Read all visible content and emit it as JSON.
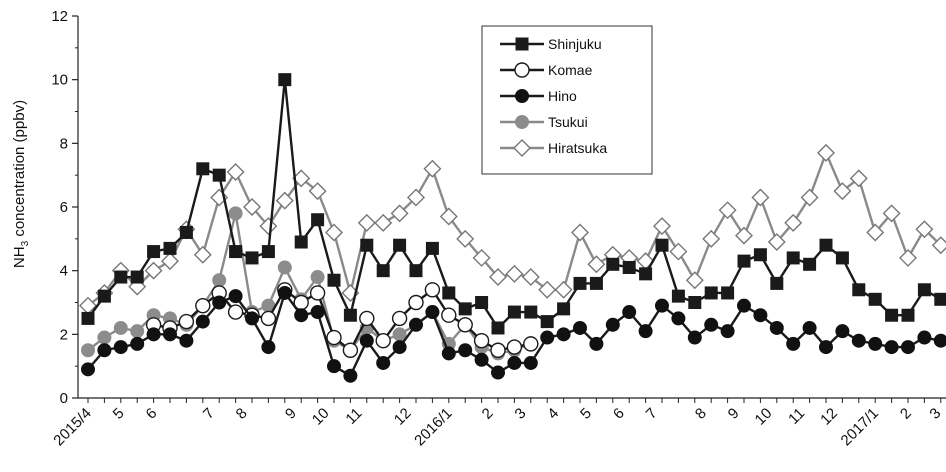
{
  "chart_data": {
    "type": "line",
    "ylabel_main": "NH",
    "ylabel_sub": "3",
    "ylabel_rest": " concentration (ppbv)",
    "ylim": [
      0,
      12
    ],
    "yticks": [
      0,
      2,
      4,
      6,
      8,
      10,
      12
    ],
    "xlim": [
      0,
      52
    ],
    "grid": false,
    "legend_position": "top-center",
    "x_ticks": [
      {
        "x": 0,
        "label": "2015/4"
      },
      {
        "x": 2,
        "label": "5"
      },
      {
        "x": 4,
        "label": "6"
      },
      {
        "x": 7.5,
        "label": "7"
      },
      {
        "x": 9.5,
        "label": "8"
      },
      {
        "x": 12.5,
        "label": "9"
      },
      {
        "x": 14.5,
        "label": "10"
      },
      {
        "x": 16.5,
        "label": "11"
      },
      {
        "x": 19.5,
        "label": "12"
      },
      {
        "x": 22,
        "label": "2016/1"
      },
      {
        "x": 24.5,
        "label": "2"
      },
      {
        "x": 26.5,
        "label": "3"
      },
      {
        "x": 28.5,
        "label": "4"
      },
      {
        "x": 30.5,
        "label": "5"
      },
      {
        "x": 32.5,
        "label": "6"
      },
      {
        "x": 34.5,
        "label": "7"
      },
      {
        "x": 37.5,
        "label": "8"
      },
      {
        "x": 39.5,
        "label": "9"
      },
      {
        "x": 41.5,
        "label": "10"
      },
      {
        "x": 43.5,
        "label": "11"
      },
      {
        "x": 45.5,
        "label": "12"
      },
      {
        "x": 48,
        "label": "2017/1"
      },
      {
        "x": 50,
        "label": "2"
      },
      {
        "x": 51.8,
        "label": "3"
      }
    ],
    "series": [
      {
        "name": "Shinjuku",
        "marker": "square",
        "color": "#1a1a1a",
        "x": [
          0,
          1,
          2,
          3,
          4,
          5,
          6,
          7,
          8,
          9,
          10,
          11,
          12,
          13,
          14,
          15,
          16,
          17,
          18,
          19,
          20,
          21,
          22,
          23,
          24,
          25,
          26,
          27,
          28,
          29,
          30,
          31,
          32,
          33,
          34,
          35,
          36,
          37,
          38,
          39,
          40,
          41,
          42,
          43,
          44,
          45,
          46,
          47,
          48,
          49,
          50,
          51,
          52
        ],
        "y": [
          2.5,
          3.2,
          3.8,
          3.8,
          4.6,
          4.7,
          5.2,
          7.2,
          7.0,
          4.6,
          4.4,
          4.6,
          10.0,
          4.9,
          5.6,
          3.7,
          2.6,
          4.8,
          4.0,
          4.8,
          4.0,
          4.7,
          3.3,
          2.8,
          3.0,
          2.2,
          2.7,
          2.7,
          2.4,
          2.8,
          3.6,
          3.6,
          4.2,
          4.1,
          3.9,
          4.8,
          3.2,
          3.0,
          3.3,
          3.3,
          4.3,
          4.5,
          3.6,
          4.4,
          4.2,
          4.8,
          4.4,
          3.4,
          3.1,
          2.6,
          2.6,
          3.4,
          3.1
        ]
      },
      {
        "name": "Komae",
        "marker": "circle-open",
        "color": "#1a1a1a",
        "x": [
          4,
          5,
          6,
          7,
          8,
          9,
          10,
          11,
          12,
          13,
          14,
          15,
          16,
          17,
          18,
          19,
          20,
          21,
          22,
          23,
          24,
          25,
          26,
          27
        ],
        "y": [
          2.3,
          2.2,
          2.4,
          2.9,
          3.3,
          2.7,
          2.6,
          2.5,
          3.4,
          3.0,
          3.3,
          1.9,
          1.5,
          2.5,
          1.8,
          2.5,
          3.0,
          3.4,
          2.6,
          2.3,
          1.8,
          1.5,
          1.6,
          1.7
        ]
      },
      {
        "name": "Hino",
        "marker": "circle-filled",
        "color": "#1a1a1a",
        "x": [
          0,
          1,
          2,
          3,
          4,
          5,
          6,
          7,
          8,
          9,
          10,
          11,
          12,
          13,
          14,
          15,
          16,
          17,
          18,
          19,
          20,
          21,
          22,
          23,
          24,
          25,
          26,
          27,
          28,
          29,
          30,
          31,
          32,
          33,
          34,
          35,
          36,
          37,
          38,
          39,
          40,
          41,
          42,
          43,
          44,
          45,
          46,
          47,
          48,
          49,
          50,
          51,
          52
        ],
        "y": [
          0.9,
          1.5,
          1.6,
          1.7,
          2.0,
          2.0,
          1.8,
          2.4,
          3.0,
          3.2,
          2.5,
          1.6,
          3.3,
          2.6,
          2.7,
          1.0,
          0.7,
          1.8,
          1.1,
          1.6,
          2.3,
          2.7,
          1.4,
          1.5,
          1.2,
          0.8,
          1.1,
          1.1,
          1.9,
          2.0,
          2.2,
          1.7,
          2.3,
          2.7,
          2.1,
          2.9,
          2.5,
          1.9,
          2.3,
          2.1,
          2.9,
          2.6,
          2.2,
          1.7,
          2.2,
          1.6,
          2.1,
          1.8,
          1.7,
          1.6,
          1.6,
          1.9,
          1.8
        ]
      },
      {
        "name": "Tsukui",
        "marker": "circle-gray",
        "color": "#8a8a8a",
        "x": [
          0,
          1,
          2,
          3,
          4,
          5,
          6,
          7,
          8,
          9,
          10,
          11,
          12,
          13,
          14,
          15,
          16,
          17,
          18,
          19,
          20,
          21,
          22,
          23,
          24,
          25,
          26,
          27
        ],
        "y": [
          1.5,
          1.9,
          2.2,
          2.1,
          2.6,
          2.5,
          2.3,
          2.9,
          3.7,
          5.8,
          2.7,
          2.9,
          4.1,
          3.1,
          3.8,
          1.8,
          1.5,
          2.2,
          1.8,
          2.0,
          2.3,
          2.7,
          1.7,
          2.3,
          1.6,
          1.4,
          1.5,
          1.7
        ]
      },
      {
        "name": "Hiratsuka",
        "marker": "diamond-open",
        "color": "#8a8a8a",
        "x": [
          0,
          1,
          2,
          3,
          4,
          5,
          6,
          7,
          8,
          9,
          10,
          11,
          12,
          13,
          14,
          15,
          16,
          17,
          18,
          19,
          20,
          21,
          22,
          23,
          24,
          25,
          26,
          27,
          28,
          29,
          30,
          31,
          32,
          33,
          34,
          35,
          36,
          37,
          38,
          39,
          40,
          41,
          42,
          43,
          44,
          45,
          46,
          47,
          48,
          49,
          50,
          51,
          52
        ],
        "y": [
          2.9,
          3.3,
          4.0,
          3.5,
          4.0,
          4.3,
          5.3,
          4.5,
          6.3,
          7.1,
          6.0,
          5.4,
          6.2,
          6.9,
          6.5,
          5.2,
          3.3,
          5.5,
          5.5,
          5.8,
          6.3,
          7.2,
          5.7,
          5.0,
          4.4,
          3.8,
          3.9,
          3.8,
          3.4,
          3.4,
          5.2,
          4.2,
          4.5,
          4.4,
          4.3,
          5.4,
          4.6,
          3.7,
          5.0,
          5.9,
          5.1,
          6.3,
          4.9,
          5.5,
          6.3,
          7.7,
          6.5,
          6.9,
          5.2,
          5.8,
          4.4,
          5.3,
          4.8
        ]
      }
    ]
  }
}
